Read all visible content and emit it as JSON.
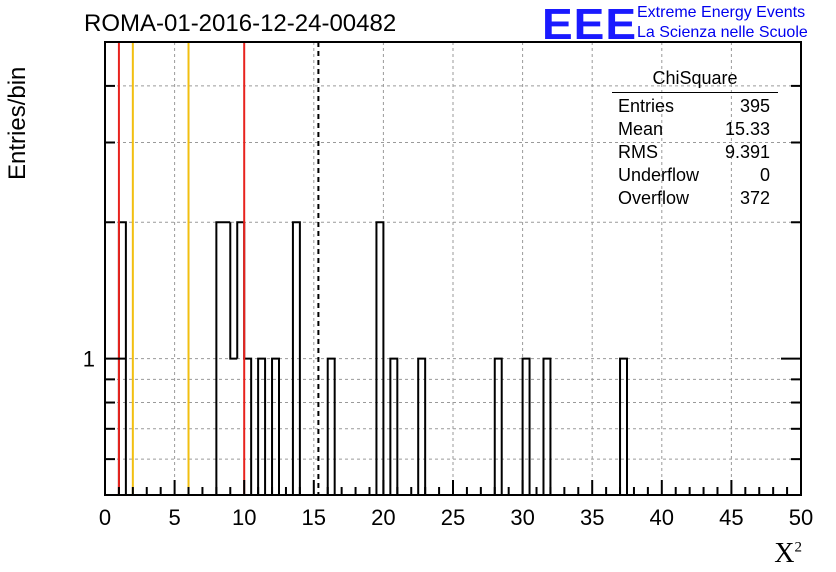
{
  "title": "ROMA-01-2016-12-24-00482",
  "logo": {
    "mark": "EEE",
    "line1": "Extreme Energy Events",
    "line2": "La Scienza nelle Scuole"
  },
  "stats_box": {
    "title": "ChiSquare",
    "rows": [
      {
        "label": "Entries",
        "value": "395"
      },
      {
        "label": "Mean",
        "value": "15.33"
      },
      {
        "label": "RMS",
        "value": "9.391"
      },
      {
        "label": "Underflow",
        "value": "0"
      },
      {
        "label": "Overflow",
        "value": "372"
      }
    ]
  },
  "chart_data": {
    "type": "bar",
    "title": "ROMA-01-2016-12-24-00482",
    "xlabel": "X",
    "xlabel_superscript": "2",
    "ylabel": "Entries/bin",
    "xlim": [
      0,
      50
    ],
    "ylim": [
      0.5,
      5
    ],
    "yscale": "log",
    "grid": true,
    "x_ticks": [
      "0",
      "5",
      "10",
      "15",
      "20",
      "25",
      "30",
      "35",
      "40",
      "45",
      "50"
    ],
    "y_ticks": [
      "1"
    ],
    "bin_width": 0.5,
    "bins": [
      {
        "x": 1.0,
        "y": 2
      },
      {
        "x": 8.0,
        "y": 2
      },
      {
        "x": 8.5,
        "y": 2
      },
      {
        "x": 9.0,
        "y": 1
      },
      {
        "x": 9.5,
        "y": 2
      },
      {
        "x": 10.0,
        "y": 1
      },
      {
        "x": 11.0,
        "y": 1
      },
      {
        "x": 12.0,
        "y": 1
      },
      {
        "x": 13.5,
        "y": 2
      },
      {
        "x": 16.0,
        "y": 1
      },
      {
        "x": 19.5,
        "y": 2
      },
      {
        "x": 20.5,
        "y": 1
      },
      {
        "x": 22.5,
        "y": 1
      },
      {
        "x": 28.0,
        "y": 1
      },
      {
        "x": 30.0,
        "y": 1
      },
      {
        "x": 31.5,
        "y": 1
      },
      {
        "x": 37.0,
        "y": 1
      }
    ],
    "vertical_lines": [
      {
        "x": 1.0,
        "color": "#e8231e",
        "style": "solid"
      },
      {
        "x": 2.0,
        "color": "#f2bf10",
        "style": "solid"
      },
      {
        "x": 6.0,
        "color": "#f2bf10",
        "style": "solid"
      },
      {
        "x": 10.0,
        "color": "#e8231e",
        "style": "solid"
      },
      {
        "x": 15.33,
        "color": "#000000",
        "style": "dashed"
      }
    ],
    "colors": {
      "histogram": "#000000",
      "grid": "#9a9a9a",
      "logo": "#1a1aff"
    }
  }
}
